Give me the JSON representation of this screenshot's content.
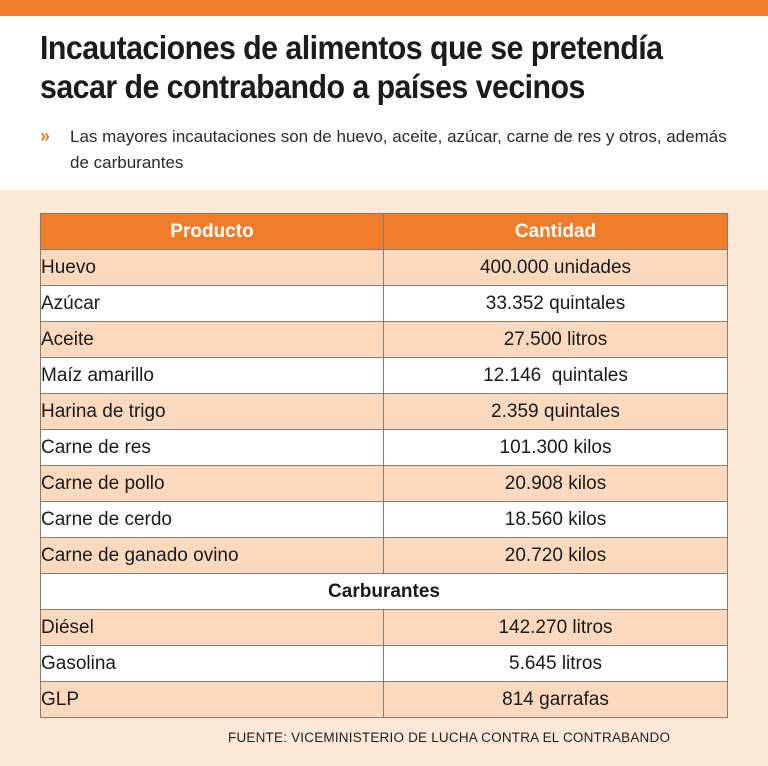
{
  "title": "Incautaciones de alimentos que se pretendía sacar de contrabando a países vecinos",
  "subtitle": "Las mayores incautaciones son de huevo, aceite, azúcar, carne de res y otros, además de carburantes",
  "subtitle_marker": "»",
  "table": {
    "headers": [
      "Producto",
      "Cantidad"
    ],
    "rows": [
      {
        "producto": "Huevo",
        "cantidad": "400.000 unidades"
      },
      {
        "producto": "Azúcar",
        "cantidad": "33.352 quintales"
      },
      {
        "producto": "Aceite",
        "cantidad": "27.500 litros"
      },
      {
        "producto": "Maíz amarillo",
        "cantidad": "12.146  quintales"
      },
      {
        "producto": "Harina de trigo",
        "cantidad": "2.359 quintales"
      },
      {
        "producto": "Carne de res",
        "cantidad": "101.300 kilos"
      },
      {
        "producto": "Carne de pollo",
        "cantidad": "20.908 kilos"
      },
      {
        "producto": "Carne de cerdo",
        "cantidad": "18.560 kilos"
      },
      {
        "producto": "Carne de ganado ovino",
        "cantidad": "20.720 kilos"
      }
    ],
    "section_label": "Carburantes",
    "fuel_rows": [
      {
        "producto": "Diésel",
        "cantidad": "142.270 litros"
      },
      {
        "producto": "Gasolina",
        "cantidad": "5.645 litros"
      },
      {
        "producto": "GLP",
        "cantidad": "814 garrafas"
      }
    ]
  },
  "source": "FUENTE: VICEMINISTERIO DE LUCHA CONTRA EL CONTRABANDO",
  "colors": {
    "accent": "#f07d2c",
    "row_tint": "#fbd9bf",
    "panel": "#fbe8d6"
  }
}
